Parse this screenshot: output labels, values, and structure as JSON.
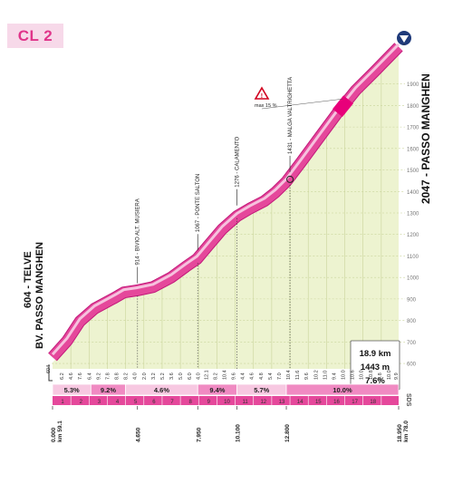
{
  "category_badge": "CL 2",
  "colors": {
    "road": "#e5489b",
    "road_light": "#f6c2de",
    "road_dark": "#c2187a",
    "fill": "#edf3d0",
    "grid": "#c9d49a",
    "dot": "#333333",
    "badge_bg": "#f7d9e9",
    "badge_text": "#e0348a",
    "finish_icon": "#1f3a7a"
  },
  "chart_data": {
    "type": "area",
    "start_label": "604 - TELVE",
    "start_sublabel": "BV. PASSO MANGHEN",
    "finish_label": "2047 - PASSO MANGHEN",
    "summary": {
      "length": "18.9 km",
      "gain": "1443 m",
      "avg": "7.6%"
    },
    "max_grade": "max 15 %",
    "y_ticks": [
      600,
      700,
      800,
      900,
      1000,
      1100,
      1200,
      1300,
      1400,
      1500,
      1600,
      1700,
      1800,
      1900
    ],
    "ylim": [
      520,
      2080
    ],
    "xlim": [
      0,
      18.95
    ],
    "profile": [
      [
        0,
        604
      ],
      [
        0.8,
        680
      ],
      [
        1.5,
        770
      ],
      [
        2.3,
        830
      ],
      [
        3.4,
        880
      ],
      [
        3.9,
        905
      ],
      [
        4.6,
        914
      ],
      [
        5.5,
        930
      ],
      [
        6.5,
        975
      ],
      [
        7.3,
        1025
      ],
      [
        7.9,
        1060
      ],
      [
        8.5,
        1120
      ],
      [
        9.3,
        1200
      ],
      [
        10.1,
        1260
      ],
      [
        10.8,
        1295
      ],
      [
        11.6,
        1330
      ],
      [
        12.2,
        1370
      ],
      [
        12.8,
        1420
      ],
      [
        13.6,
        1510
      ],
      [
        14.6,
        1625
      ],
      [
        15.6,
        1740
      ],
      [
        16.6,
        1845
      ],
      [
        17.6,
        1930
      ],
      [
        18.95,
        2047
      ]
    ],
    "km_grades": [
      {
        "km": 0.5,
        "grade": "6.2"
      },
      {
        "km": 1.0,
        "grade": "4.6"
      },
      {
        "km": 1.5,
        "grade": "7.6"
      },
      {
        "km": 2.0,
        "grade": "6.4"
      },
      {
        "km": 2.5,
        "grade": "9.2"
      },
      {
        "km": 3.0,
        "grade": "7.8"
      },
      {
        "km": 3.5,
        "grade": "8.8"
      },
      {
        "km": 4.0,
        "grade": "8.2"
      },
      {
        "km": 4.5,
        "grade": "4.0"
      },
      {
        "km": 5.0,
        "grade": "2.0"
      },
      {
        "km": 5.5,
        "grade": "3.2"
      },
      {
        "km": 6.0,
        "grade": "5.2"
      },
      {
        "km": 6.5,
        "grade": "3.6"
      },
      {
        "km": 7.0,
        "grade": "5.0"
      },
      {
        "km": 7.5,
        "grade": "6.0"
      },
      {
        "km": 7.95,
        "grade": "4.0"
      },
      {
        "km": 8.4,
        "grade": "12.1"
      },
      {
        "km": 8.9,
        "grade": "8.2"
      },
      {
        "km": 9.4,
        "grade": "10.4"
      },
      {
        "km": 9.9,
        "grade": "9.6"
      },
      {
        "km": 10.4,
        "grade": "4.4"
      },
      {
        "km": 10.9,
        "grade": "4.6"
      },
      {
        "km": 11.4,
        "grade": "4.8"
      },
      {
        "km": 11.9,
        "grade": "5.4"
      },
      {
        "km": 12.4,
        "grade": "7.0"
      },
      {
        "km": 12.9,
        "grade": "10.4"
      },
      {
        "km": 13.4,
        "grade": "11.6"
      },
      {
        "km": 13.9,
        "grade": "9.6"
      },
      {
        "km": 14.4,
        "grade": "10.2"
      },
      {
        "km": 14.9,
        "grade": "11.0"
      },
      {
        "km": 15.4,
        "grade": "9.4"
      },
      {
        "km": 15.9,
        "grade": "10.0"
      },
      {
        "km": 16.4,
        "grade": "10.6"
      },
      {
        "km": 16.9,
        "grade": "10.0"
      },
      {
        "km": 17.4,
        "grade": "10.8"
      },
      {
        "km": 17.9,
        "grade": "9.8"
      },
      {
        "km": 18.4,
        "grade": "10.0"
      },
      {
        "km": 18.8,
        "grade": "9.9"
      }
    ],
    "segments": [
      {
        "from": 0,
        "to": 2.1,
        "grade": "5.3%",
        "shade": "light"
      },
      {
        "from": 2.1,
        "to": 4.0,
        "grade": "9.2%",
        "shade": "mid"
      },
      {
        "from": 4.0,
        "to": 7.95,
        "grade": "4.6%",
        "shade": "light"
      },
      {
        "from": 7.95,
        "to": 10.1,
        "grade": "9.4%",
        "shade": "mid"
      },
      {
        "from": 10.1,
        "to": 12.8,
        "grade": "5.7%",
        "shade": "light"
      },
      {
        "from": 12.8,
        "to": 18.95,
        "grade": "10.0%",
        "shade": "mid"
      }
    ],
    "km_numbers": [
      "1",
      "2",
      "3",
      "4",
      "5",
      "6",
      "7",
      "8",
      "9",
      "10",
      "11",
      "12",
      "13",
      "14",
      "15",
      "16",
      "17",
      "18"
    ],
    "waypoints": [
      {
        "km": 4.65,
        "alt": 914,
        "label": "914 - BIVIO ALT. MUSIERA"
      },
      {
        "km": 7.95,
        "alt": 1067,
        "label": "1067 - PONTE SALTON"
      },
      {
        "km": 10.1,
        "alt": 1276,
        "label": "1276 - CALAMENTO"
      },
      {
        "km": 13.0,
        "alt": 1431,
        "label": "1431 - MALGA VALTRIGHETTA"
      }
    ],
    "distance_markers": [
      {
        "km": 0,
        "label": "0.000",
        "sub": "km 59.1"
      },
      {
        "km": 4.65,
        "label": "4.650"
      },
      {
        "km": 7.95,
        "label": "7.950"
      },
      {
        "km": 10.1,
        "label": "10.100"
      },
      {
        "km": 12.8,
        "label": "12.800"
      },
      {
        "km": 18.95,
        "label": "18.950",
        "sub": "km 78.0"
      }
    ],
    "sds_label": "SDS"
  }
}
